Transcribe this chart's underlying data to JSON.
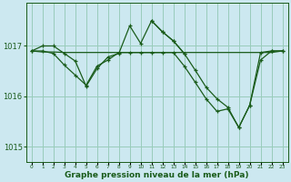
{
  "background_color": "#cce8f0",
  "grid_color": "#99ccbb",
  "line_color": "#1a5c1a",
  "xlabel": "Graphe pression niveau de la mer (hPa)",
  "ylim": [
    1014.7,
    1017.85
  ],
  "yticks": [
    1015,
    1016,
    1017
  ],
  "x_ticks": [
    0,
    1,
    2,
    3,
    4,
    5,
    6,
    7,
    8,
    9,
    10,
    11,
    12,
    13,
    14,
    15,
    16,
    17,
    18,
    19,
    20,
    21,
    22,
    23
  ],
  "series1_x": [
    0,
    1,
    2,
    3,
    4,
    5,
    6,
    7,
    8,
    9,
    10,
    11,
    12,
    13,
    14
  ],
  "series1_y": [
    1016.9,
    1017.0,
    1017.0,
    1016.85,
    1016.7,
    1016.2,
    1016.55,
    1016.78,
    1016.85,
    1017.4,
    1017.05,
    1017.5,
    1017.28,
    1017.1,
    1016.85
  ],
  "series2_x": [
    0,
    1,
    2,
    3,
    4,
    5,
    6,
    7,
    8,
    9,
    10,
    11,
    12,
    13,
    14,
    15,
    16,
    17,
    18,
    19,
    20,
    21,
    22,
    23
  ],
  "series2_y": [
    1016.9,
    1016.88,
    1016.88,
    1016.87,
    1016.87,
    1016.87,
    1016.87,
    1016.87,
    1016.87,
    1016.87,
    1016.87,
    1016.87,
    1016.87,
    1016.87,
    1016.87,
    1016.87,
    1016.87,
    1016.87,
    1016.87,
    1016.87,
    1016.87,
    1016.87,
    1016.87,
    1016.9
  ],
  "series3_x": [
    0,
    1,
    2,
    3,
    4,
    5,
    6,
    7,
    8,
    9,
    10,
    11,
    12,
    13,
    14,
    15,
    16,
    17,
    18,
    19,
    20,
    21,
    22,
    23
  ],
  "series3_y": [
    1016.9,
    1016.9,
    1016.85,
    1016.62,
    1016.42,
    1016.22,
    1016.6,
    1016.72,
    1016.87,
    1016.87,
    1016.87,
    1016.87,
    1016.87,
    1016.87,
    1016.6,
    1016.28,
    1015.95,
    1015.7,
    1015.75,
    1015.38,
    1015.82,
    1016.87,
    1016.9,
    1016.9
  ],
  "series4_x": [
    11,
    12,
    13,
    14,
    15,
    16,
    17,
    18,
    19,
    20,
    21,
    22,
    23
  ],
  "series4_y": [
    1017.5,
    1017.28,
    1017.1,
    1016.85,
    1016.52,
    1016.18,
    1015.95,
    1015.78,
    1015.38,
    1015.82,
    1016.72,
    1016.9,
    1016.9
  ]
}
